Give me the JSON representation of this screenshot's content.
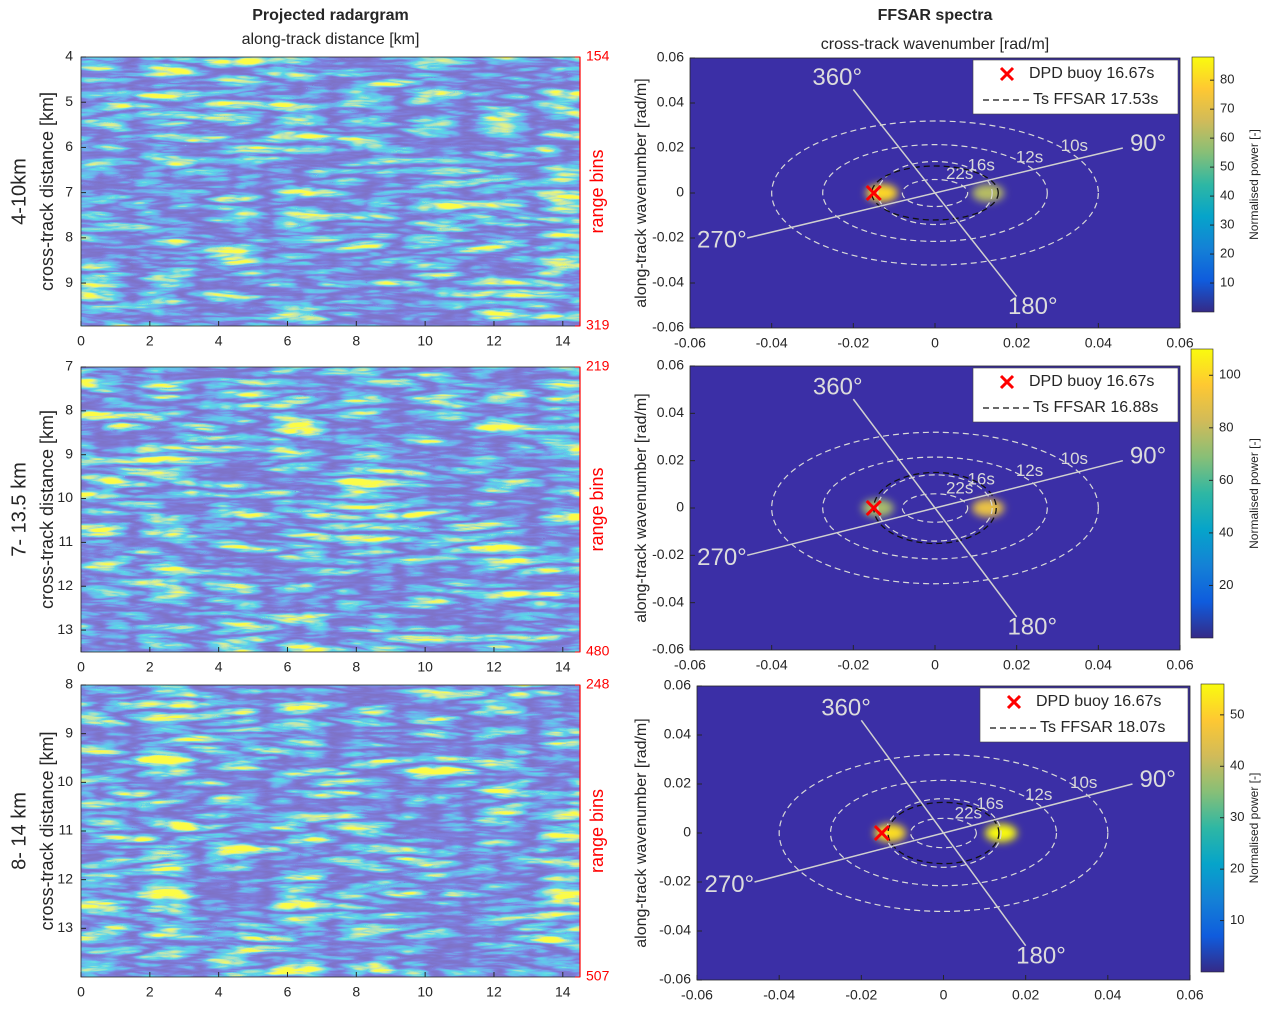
{
  "chart_data": [
    {
      "type": "radargram",
      "title": "Projected radargram",
      "xlabel": "along-track distance [km]",
      "row_label": "4-10km",
      "ylabel": "cross-track distance [km]",
      "y2label": "range bins",
      "xlim": [
        0,
        14.5
      ],
      "xticks": [
        0,
        2,
        4,
        6,
        8,
        10,
        12,
        14
      ],
      "ylim": [
        4,
        9.95
      ],
      "yticks": [
        4,
        5,
        6,
        7,
        8,
        9
      ],
      "y2lim": [
        154,
        319
      ],
      "y2ticks": [
        154,
        319
      ]
    },
    {
      "type": "spectrum",
      "title": "FFSAR spectra",
      "xlabel": "cross-track wavenumber [rad/m]",
      "ylabel": "along-track wavenumber [rad/m]",
      "xlim": [
        -0.06,
        0.06
      ],
      "xticks": [
        -0.06,
        -0.04,
        -0.02,
        0,
        0.02,
        0.04,
        0.06
      ],
      "ylim": [
        -0.06,
        0.06
      ],
      "yticks": [
        -0.06,
        -0.04,
        -0.02,
        0,
        0.02,
        0.04,
        0.06
      ],
      "buoy": {
        "name": "DPD buoy 16.67s",
        "color": "#ff0000",
        "x": -0.015,
        "y": 0
      },
      "ts": {
        "name": "Ts FFSAR 17.53s",
        "rx": 0.0155,
        "ry": 0.012
      },
      "rings": [
        {
          "label": "10s",
          "rx": 0.04,
          "ry": 0.032
        },
        {
          "label": "12s",
          "rx": 0.0275,
          "ry": 0.0215
        },
        {
          "label": "16s",
          "rx": 0.014,
          "ry": 0.014
        },
        {
          "label": "22s",
          "rx": 0.008,
          "ry": 0.006
        }
      ],
      "directions": [
        {
          "label": "360°",
          "x": -0.02,
          "y": 0.046
        },
        {
          "label": "90°",
          "x": 0.046,
          "y": 0.02
        },
        {
          "label": "180°",
          "x": 0.02,
          "y": -0.046
        },
        {
          "label": "270°",
          "x": -0.046,
          "y": -0.02
        }
      ],
      "peaks": [
        {
          "x": -0.013,
          "y": 0,
          "power": 80
        },
        {
          "x": 0.013,
          "y": 0,
          "power": 62
        }
      ],
      "colorbar": {
        "label": "Normalised power [-]",
        "lim": [
          0,
          88
        ],
        "ticks": [
          10,
          20,
          30,
          40,
          50,
          60,
          70,
          80
        ]
      }
    },
    {
      "type": "radargram",
      "row_label": "7- 13.5 km",
      "ylabel": "cross-track distance [km]",
      "y2label": "range bins",
      "xlim": [
        0,
        14.5
      ],
      "xticks": [
        0,
        2,
        4,
        6,
        8,
        10,
        12,
        14
      ],
      "ylim": [
        7,
        13.5
      ],
      "yticks": [
        7,
        8,
        9,
        10,
        11,
        12,
        13
      ],
      "y2lim": [
        219,
        480
      ],
      "y2ticks": [
        219,
        480
      ]
    },
    {
      "type": "spectrum",
      "ylabel": "along-track wavenumber [rad/m]",
      "xlim": [
        -0.06,
        0.06
      ],
      "xticks": [
        -0.06,
        -0.04,
        -0.02,
        0,
        0.02,
        0.04,
        0.06
      ],
      "ylim": [
        -0.06,
        0.06
      ],
      "yticks": [
        -0.06,
        -0.04,
        -0.02,
        0,
        0.02,
        0.04,
        0.06
      ],
      "buoy": {
        "name": "DPD buoy 16.67s",
        "color": "#ff0000",
        "x": -0.015,
        "y": 0
      },
      "ts": {
        "name": "Ts FFSAR 16.88s",
        "rx": 0.015,
        "ry": 0.015
      },
      "rings": [
        {
          "label": "10s",
          "rx": 0.04,
          "ry": 0.032
        },
        {
          "label": "12s",
          "rx": 0.0275,
          "ry": 0.0215
        },
        {
          "label": "16s",
          "rx": 0.014,
          "ry": 0.014
        },
        {
          "label": "22s",
          "rx": 0.008,
          "ry": 0.006
        }
      ],
      "directions": [
        {
          "label": "360°",
          "x": -0.02,
          "y": 0.046
        },
        {
          "label": "90°",
          "x": 0.046,
          "y": 0.02
        },
        {
          "label": "180°",
          "x": 0.02,
          "y": -0.046
        },
        {
          "label": "270°",
          "x": -0.046,
          "y": -0.02
        }
      ],
      "peaks": [
        {
          "x": -0.014,
          "y": 0,
          "power": 75
        },
        {
          "x": 0.013,
          "y": 0,
          "power": 90
        }
      ],
      "colorbar": {
        "label": "Normalised power [-]",
        "lim": [
          0,
          110
        ],
        "ticks": [
          20,
          40,
          60,
          80,
          100
        ]
      }
    },
    {
      "type": "radargram",
      "row_label": "8- 14 km",
      "ylabel": "cross-track distance [km]",
      "y2label": "range bins",
      "xlim": [
        0,
        14.5
      ],
      "xticks": [
        0,
        2,
        4,
        6,
        8,
        10,
        12,
        14
      ],
      "ylim": [
        8,
        14
      ],
      "yticks": [
        8,
        9,
        10,
        11,
        12,
        13
      ],
      "y2lim": [
        248,
        507
      ],
      "y2ticks": [
        248,
        507
      ]
    },
    {
      "type": "spectrum",
      "ylabel": "along-track wavenumber [rad/m]",
      "xlim": [
        -0.06,
        0.06
      ],
      "xticks": [
        -0.06,
        -0.04,
        -0.02,
        0,
        0.02,
        0.04,
        0.06
      ],
      "ylim": [
        -0.06,
        0.06
      ],
      "yticks": [
        -0.06,
        -0.04,
        -0.02,
        0,
        0.02,
        0.04,
        0.06
      ],
      "buoy": {
        "name": "DPD buoy 16.67s",
        "color": "#ff0000",
        "x": -0.015,
        "y": 0
      },
      "ts": {
        "name": "Ts FFSAR 18.07s",
        "rx": 0.0135,
        "ry": 0.0125
      },
      "rings": [
        {
          "label": "10s",
          "rx": 0.04,
          "ry": 0.032
        },
        {
          "label": "12s",
          "rx": 0.0275,
          "ry": 0.0215
        },
        {
          "label": "16s",
          "rx": 0.014,
          "ry": 0.014
        },
        {
          "label": "22s",
          "rx": 0.008,
          "ry": 0.006
        }
      ],
      "directions": [
        {
          "label": "360°",
          "x": -0.02,
          "y": 0.046
        },
        {
          "label": "90°",
          "x": 0.046,
          "y": 0.02
        },
        {
          "label": "180°",
          "x": 0.02,
          "y": -0.046
        },
        {
          "label": "270°",
          "x": -0.046,
          "y": -0.02
        }
      ],
      "peaks": [
        {
          "x": -0.013,
          "y": 0,
          "power": 52
        },
        {
          "x": 0.014,
          "y": 0,
          "power": 56
        }
      ],
      "colorbar": {
        "label": "Normalised power [-]",
        "lim": [
          0,
          56
        ],
        "ticks": [
          10,
          20,
          30,
          40,
          50
        ]
      }
    }
  ]
}
